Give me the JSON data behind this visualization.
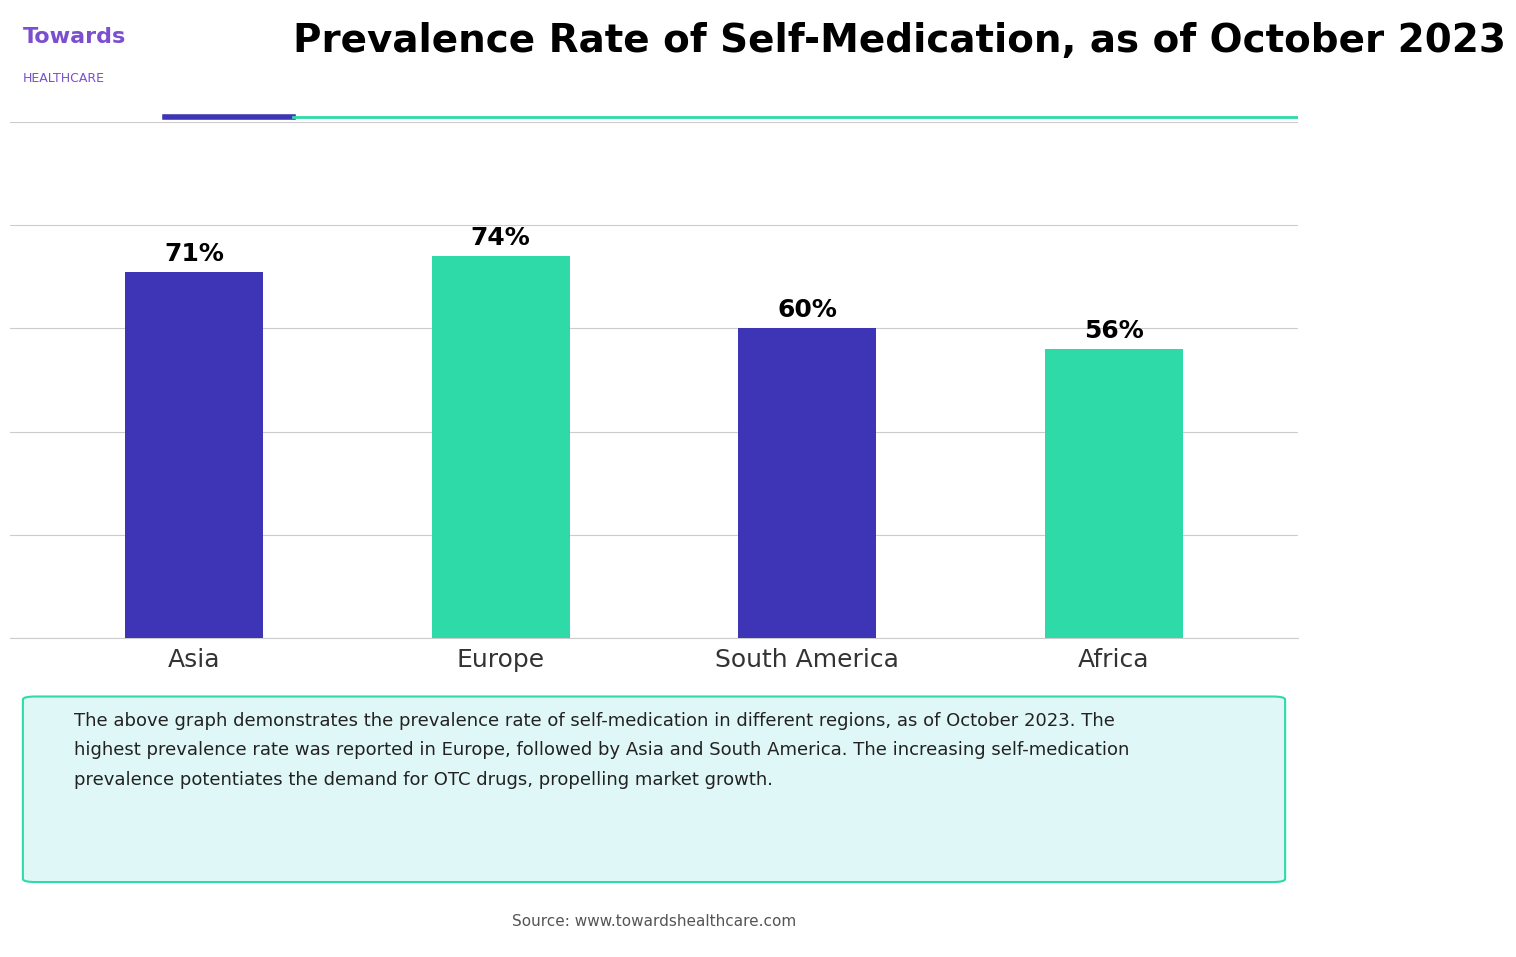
{
  "title": "Prevalence Rate of Self-Medication, as of October 2023",
  "categories": [
    "Asia",
    "Europe",
    "South America",
    "Africa"
  ],
  "values": [
    71,
    74,
    60,
    56
  ],
  "bar_colors": [
    "#3D35B5",
    "#2EDBA8",
    "#3D35B5",
    "#2EDBA8"
  ],
  "value_labels": [
    "71%",
    "74%",
    "60%",
    "56%"
  ],
  "ylim": [
    0,
    100
  ],
  "yticks": [
    0,
    20,
    40,
    60,
    80,
    100
  ],
  "background_color": "#ffffff",
  "grid_color": "#cccccc",
  "title_fontsize": 28,
  "label_fontsize": 18,
  "value_fontsize": 18,
  "bar_width": 0.45,
  "description_text": "The above graph demonstrates the prevalence rate of self-medication in different regions, as of October 2023. The\nhighest prevalence rate was reported in Europe, followed by Asia and South America. The increasing self-medication\nprevalence potentiates the demand for OTC drugs, propelling market growth.",
  "source_text": "Source: www.towardshealthcare.com",
  "description_bg_color": "#E0F7F7",
  "description_border_color": "#2EDBA8",
  "divider_color1": "#3D35B5",
  "divider_color2": "#2EDBA8",
  "towards_color": "#7B4FCE",
  "healthcare_color": "#7B4FCE"
}
